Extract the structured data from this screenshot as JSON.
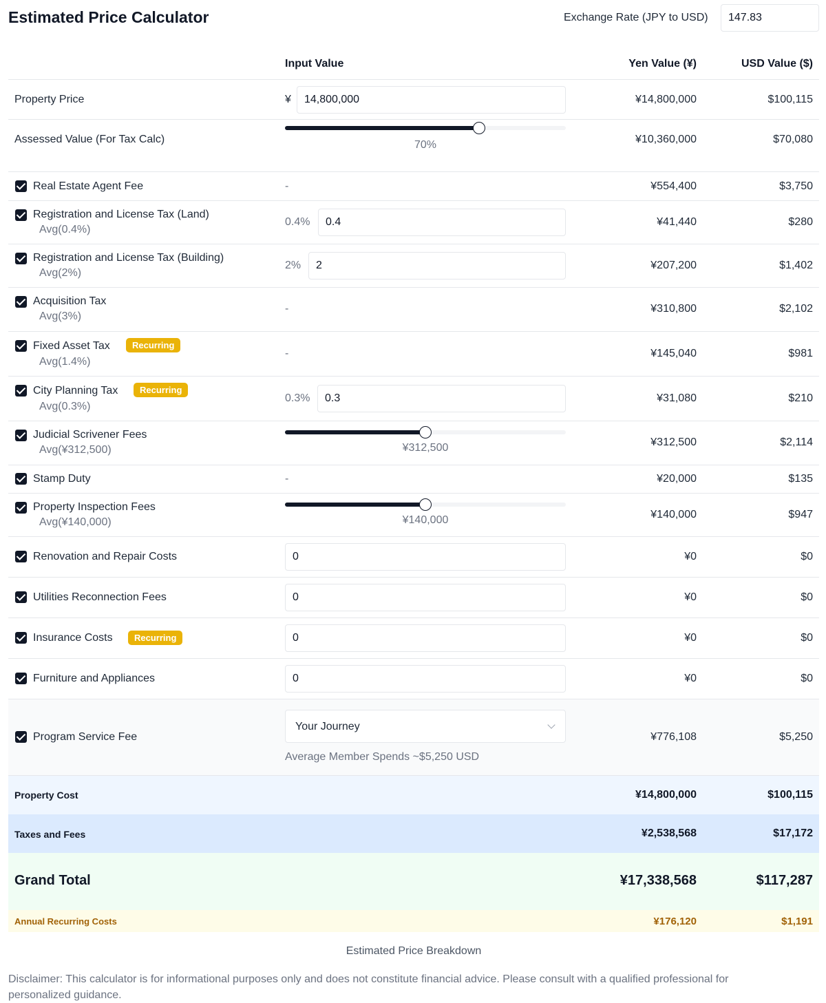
{
  "header": {
    "title": "Estimated Price Calculator",
    "exchange_rate_label": "Exchange Rate (JPY to USD)",
    "exchange_rate_value": "147.83"
  },
  "columns": {
    "input": "Input Value",
    "yen": "Yen Value (¥)",
    "usd": "USD Value ($)"
  },
  "property_price": {
    "label": "Property Price",
    "prefix": "¥",
    "value": "14,800,000",
    "yen": "¥14,800,000",
    "usd": "$100,115"
  },
  "assessed_value": {
    "label": "Assessed Value (For Tax Calc)",
    "slider_fraction": 0.69,
    "slider_label": "70%",
    "yen": "¥10,360,000",
    "usd": "$70,080"
  },
  "fees": {
    "agent_fee": {
      "label": "Real Estate Agent Fee",
      "input": "-",
      "yen": "¥554,400",
      "usd": "$3,750"
    },
    "reg_land": {
      "label": "Registration and License Tax (Land)",
      "avg": "Avg(0.4%)",
      "pct": "0.4%",
      "value": "0.4",
      "yen": "¥41,440",
      "usd": "$280"
    },
    "reg_building": {
      "label": "Registration and License Tax (Building)",
      "avg": "Avg(2%)",
      "pct": "2%",
      "value": "2",
      "yen": "¥207,200",
      "usd": "$1,402"
    },
    "acquisition": {
      "label": "Acquisition Tax",
      "avg": "Avg(3%)",
      "input": "-",
      "yen": "¥310,800",
      "usd": "$2,102"
    },
    "fixed_asset": {
      "label": "Fixed Asset Tax",
      "badge": "Recurring",
      "avg": "Avg(1.4%)",
      "input": "-",
      "yen": "¥145,040",
      "usd": "$981"
    },
    "city_planning": {
      "label": "City Planning Tax",
      "badge": "Recurring",
      "avg": "Avg(0.3%)",
      "pct": "0.3%",
      "value": "0.3",
      "yen": "¥31,080",
      "usd": "$210"
    },
    "scrivener": {
      "label": "Judicial Scrivener Fees",
      "avg": "Avg(¥312,500)",
      "slider_fraction": 0.5,
      "slider_label": "¥312,500",
      "yen": "¥312,500",
      "usd": "$2,114"
    },
    "stamp": {
      "label": "Stamp Duty",
      "input": "-",
      "yen": "¥20,000",
      "usd": "$135"
    },
    "inspection": {
      "label": "Property Inspection Fees",
      "avg": "Avg(¥140,000)",
      "slider_fraction": 0.5,
      "slider_label": "¥140,000",
      "yen": "¥140,000",
      "usd": "$947"
    },
    "renovation": {
      "label": "Renovation and Repair Costs",
      "value": "0",
      "yen": "¥0",
      "usd": "$0"
    },
    "utilities": {
      "label": "Utilities Reconnection Fees",
      "value": "0",
      "yen": "¥0",
      "usd": "$0"
    },
    "insurance": {
      "label": "Insurance Costs",
      "badge": "Recurring",
      "value": "0",
      "yen": "¥0",
      "usd": "$0"
    },
    "furniture": {
      "label": "Furniture and Appliances",
      "value": "0",
      "yen": "¥0",
      "usd": "$0"
    },
    "program": {
      "label": "Program Service Fee",
      "selected": "Your Journey",
      "note": "Average Member Spends ~$5,250 USD",
      "yen": "¥776,108",
      "usd": "$5,250"
    }
  },
  "summary": {
    "property_cost": {
      "label": "Property Cost",
      "yen": "¥14,800,000",
      "usd": "$100,115"
    },
    "taxes_fees": {
      "label": "Taxes and Fees",
      "yen": "¥2,538,568",
      "usd": "$17,172"
    },
    "grand_total": {
      "label": "Grand Total",
      "yen": "¥17,338,568",
      "usd": "$117,287"
    },
    "recurring": {
      "label": "Annual Recurring Costs",
      "yen": "¥176,120",
      "usd": "$1,191"
    }
  },
  "footer": {
    "caption": "Estimated Price Breakdown",
    "disclaimer": "Disclaimer: This calculator is for informational purposes only and does not constitute financial advice. Please consult with a qualified professional for personalized guidance."
  },
  "colors": {
    "badge": "#eab308",
    "property_cost_bg": "#eff6ff",
    "taxes_fees_bg": "#dbeafe",
    "grand_total_bg": "#f0fdf4",
    "recurring_bg": "#fefce8",
    "recurring_text": "#a16207"
  }
}
